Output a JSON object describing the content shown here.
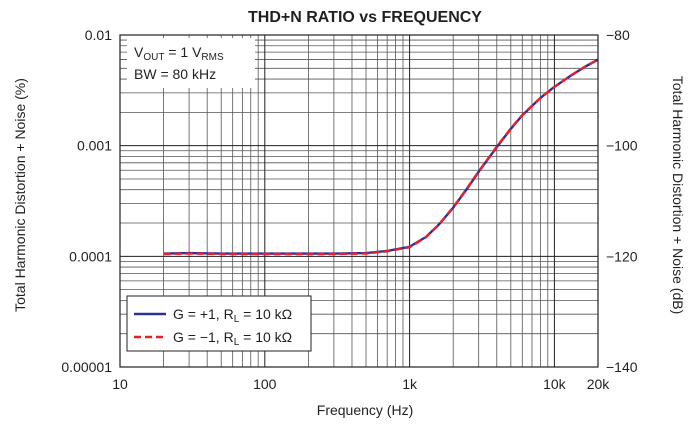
{
  "chart_data": {
    "type": "line",
    "title": "THD+N RATIO vs FREQUENCY",
    "xlabel": "Frequency (Hz)",
    "ylabel": "Total Harmonic Distortion + Noise (%)",
    "y2label": "Total Harmonic Distortion + Noise (dB)",
    "x_scale": "log",
    "y_scale": "log",
    "xlim": [
      10,
      20000
    ],
    "ylim": [
      1e-05,
      0.01
    ],
    "y2lim": [
      -140,
      -80
    ],
    "grid": true,
    "x_ticks": [
      {
        "value": 10,
        "label": "10"
      },
      {
        "value": 100,
        "label": "100"
      },
      {
        "value": 1000,
        "label": "1k"
      },
      {
        "value": 10000,
        "label": "10k"
      },
      {
        "value": 20000,
        "label": "20k"
      }
    ],
    "y_ticks": [
      {
        "value": 0.01,
        "label": "0.01"
      },
      {
        "value": 0.001,
        "label": "0.001"
      },
      {
        "value": 0.0001,
        "label": "0.0001"
      },
      {
        "value": 1e-05,
        "label": "0.00001"
      }
    ],
    "y2_ticks": [
      {
        "value": -80,
        "label": "−80"
      },
      {
        "value": -100,
        "label": "−100"
      },
      {
        "value": -120,
        "label": "−120"
      },
      {
        "value": -140,
        "label": "−140"
      }
    ],
    "annotations": {
      "vout": {
        "main": "V",
        "sub1": "OUT",
        "mid": " = 1 V",
        "sub2": "RMS"
      },
      "bw": "BW = 80 kHz"
    },
    "legend_position": "bottom-left",
    "series": [
      {
        "legend_main": "G = +1, R",
        "legend_sub": "L",
        "legend_end": " = 10 kΩ",
        "color": "#2e3192",
        "dash": "solid",
        "x": [
          20,
          30,
          50,
          100,
          200,
          300,
          500,
          700,
          1000,
          1300,
          1600,
          2000,
          2500,
          3000,
          4000,
          5000,
          6000,
          8000,
          10000,
          13000,
          16000,
          20000
        ],
        "y": [
          0.000106,
          0.000107,
          0.000106,
          0.000106,
          0.000106,
          0.000106,
          0.000107,
          0.000112,
          0.000122,
          0.00015,
          0.000195,
          0.000275,
          0.00041,
          0.00058,
          0.00097,
          0.00142,
          0.00188,
          0.0027,
          0.0034,
          0.0043,
          0.0051,
          0.006
        ]
      },
      {
        "legend_main": "G = −1, R",
        "legend_sub": "L",
        "legend_end": " = 10 kΩ",
        "color": "#e8202a",
        "dash": "dashed",
        "x": [
          20,
          30,
          50,
          100,
          200,
          300,
          500,
          700,
          1000,
          1300,
          1600,
          2000,
          2500,
          3000,
          4000,
          5000,
          6000,
          8000,
          10000,
          13000,
          16000,
          20000
        ],
        "y": [
          0.000105,
          0.000106,
          0.000105,
          0.000105,
          0.000105,
          0.000105,
          0.000106,
          0.000111,
          0.000121,
          0.000149,
          0.000195,
          0.000277,
          0.000415,
          0.000585,
          0.00098,
          0.00143,
          0.00189,
          0.0027,
          0.0034,
          0.0043,
          0.0051,
          0.006
        ]
      }
    ]
  }
}
